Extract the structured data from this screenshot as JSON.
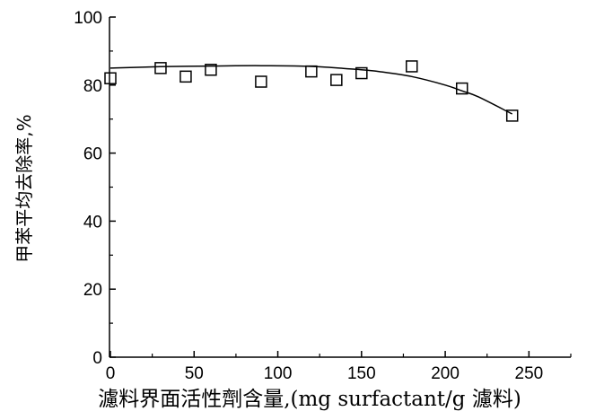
{
  "chart_data": {
    "type": "scatter",
    "title": "",
    "xlabel": "濾料界面活性劑含量,(mg surfactant/g 濾料)",
    "ylabel": "甲苯平均去除率,%",
    "xlim": [
      0,
      275
    ],
    "ylim": [
      0,
      100
    ],
    "xticks": [
      0,
      50,
      100,
      150,
      200,
      250
    ],
    "yticks": [
      0,
      20,
      40,
      60,
      80,
      100
    ],
    "grid": false,
    "legend": "none",
    "series": [
      {
        "marker": "open-square",
        "x": [
          0,
          30,
          45,
          60,
          90,
          120,
          135,
          150,
          180,
          210,
          240
        ],
        "y": [
          82,
          85,
          82.5,
          84.5,
          81,
          84,
          81.5,
          83.5,
          85.5,
          79,
          71
        ]
      }
    ],
    "fit_curve": {
      "style": "smooth-line",
      "x": [
        0,
        30,
        60,
        90,
        120,
        150,
        160,
        180,
        200,
        210,
        220,
        240
      ],
      "y": [
        85,
        85.4,
        85.6,
        85.7,
        85.5,
        84.5,
        84,
        82.5,
        80,
        78.3,
        76.5,
        71.5
      ]
    },
    "colors": {
      "axis": "#000000",
      "marker": "#000000",
      "line": "#000000"
    }
  }
}
